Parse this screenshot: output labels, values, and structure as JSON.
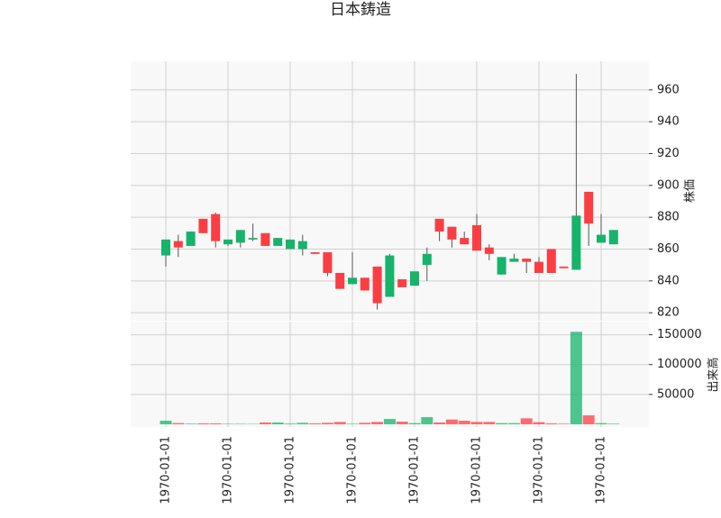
{
  "chart_data": {
    "type": "candlestick",
    "title": "日本鋳造",
    "categories": [
      "1970-01-01",
      null,
      null,
      null,
      null,
      "1970-01-01",
      null,
      null,
      null,
      null,
      "1970-01-01",
      null,
      null,
      null,
      null,
      "1970-01-01",
      null,
      null,
      null,
      null,
      "1970-01-01",
      null,
      null,
      null,
      null,
      "1970-01-01",
      null,
      null,
      null,
      null,
      "1970-01-01",
      null,
      null,
      null,
      null,
      "1970-01-01",
      null
    ],
    "open": [
      856,
      865,
      862,
      879,
      882,
      863,
      864,
      866,
      870,
      862,
      860,
      860,
      858,
      858,
      845,
      838,
      842,
      849,
      830,
      841,
      837,
      850,
      879,
      874,
      867,
      875,
      861,
      844,
      852,
      854,
      852,
      860,
      849,
      847,
      896,
      864,
      863
    ],
    "high": [
      866,
      869,
      871,
      879,
      883,
      866,
      872,
      876,
      870,
      867,
      866,
      869,
      858,
      858,
      845,
      858,
      842,
      849,
      857,
      841,
      846,
      861,
      879,
      874,
      871,
      882,
      863,
      855,
      857,
      854,
      855,
      860,
      849,
      970,
      896,
      882,
      872
    ],
    "low": [
      849,
      855,
      862,
      870,
      861,
      862,
      861,
      865,
      862,
      862,
      860,
      856,
      857,
      843,
      835,
      838,
      834,
      822,
      830,
      836,
      837,
      840,
      865,
      861,
      863,
      859,
      853,
      844,
      852,
      845,
      845,
      845,
      848,
      847,
      862,
      864,
      863
    ],
    "close": [
      866,
      861,
      871,
      870,
      865,
      866,
      872,
      867,
      862,
      867,
      866,
      865,
      857,
      845,
      835,
      842,
      834,
      826,
      856,
      836,
      846,
      857,
      871,
      866,
      863,
      859,
      857,
      855,
      854,
      852,
      845,
      845,
      848,
      881,
      876,
      869,
      872
    ],
    "volume": [
      6000,
      2000,
      1000,
      1500,
      1500,
      800,
      800,
      700,
      3000,
      3000,
      1200,
      2500,
      1500,
      2500,
      4000,
      900,
      2500,
      4000,
      9000,
      4500,
      2000,
      12000,
      3000,
      8000,
      6000,
      4000,
      4000,
      2000,
      2000,
      10000,
      3500,
      1500,
      1000,
      155000,
      15000,
      2000,
      1000
    ],
    "up_color": "#16b36b",
    "down_color": "#fb3e43",
    "y_label": "株価",
    "ylim": [
      815,
      978
    ],
    "yticks": [
      820,
      840,
      860,
      880,
      900,
      920,
      940,
      960
    ],
    "y2_label": "出来高",
    "y2lim": [
      0,
      172000
    ],
    "y2ticks": [
      50000,
      100000,
      150000
    ],
    "grid": true
  }
}
